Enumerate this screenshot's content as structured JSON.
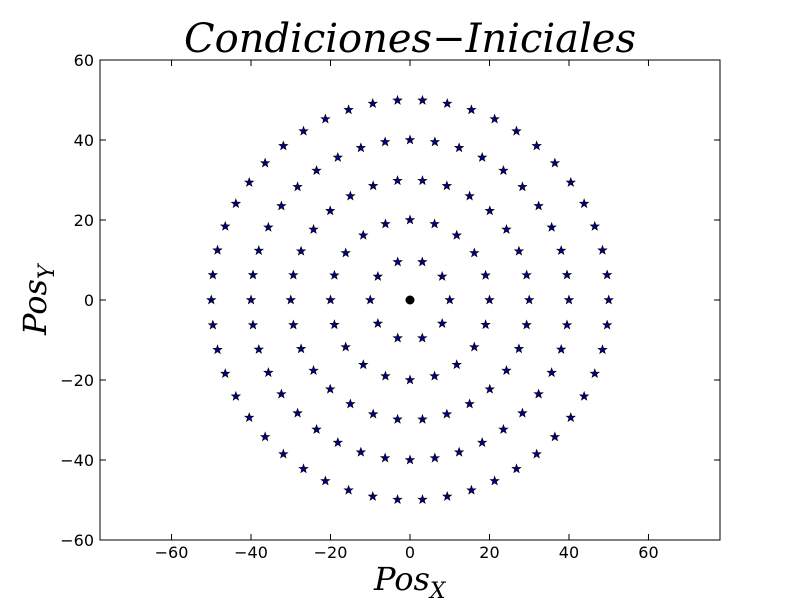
{
  "chart_data": {
    "type": "scatter",
    "title": "Condiciones−Iniciales",
    "xlabel": {
      "base": "Pos",
      "sub": "X"
    },
    "ylabel": {
      "base": "Pos",
      "sub": "Y"
    },
    "xlim": [
      -78,
      78
    ],
    "ylim": [
      -60,
      60
    ],
    "xticks": [
      -60,
      -40,
      -20,
      0,
      20,
      40,
      60
    ],
    "yticks": [
      -60,
      -40,
      -20,
      0,
      20,
      40,
      60
    ],
    "grid": false,
    "colors": {
      "marker_fill": "#00008b",
      "marker_edge": "#000000",
      "center": "#000000"
    },
    "center_point": {
      "x": 0,
      "y": 0,
      "marker": "circle"
    },
    "series": [
      {
        "marker": "star",
        "ring_radius": 10,
        "count": 10
      },
      {
        "marker": "star",
        "ring_radius": 20,
        "count": 20
      },
      {
        "marker": "star",
        "ring_radius": 30,
        "count": 30
      },
      {
        "marker": "star",
        "ring_radius": 40,
        "count": 40
      },
      {
        "marker": "star",
        "ring_radius": 50,
        "count": 50
      }
    ]
  }
}
